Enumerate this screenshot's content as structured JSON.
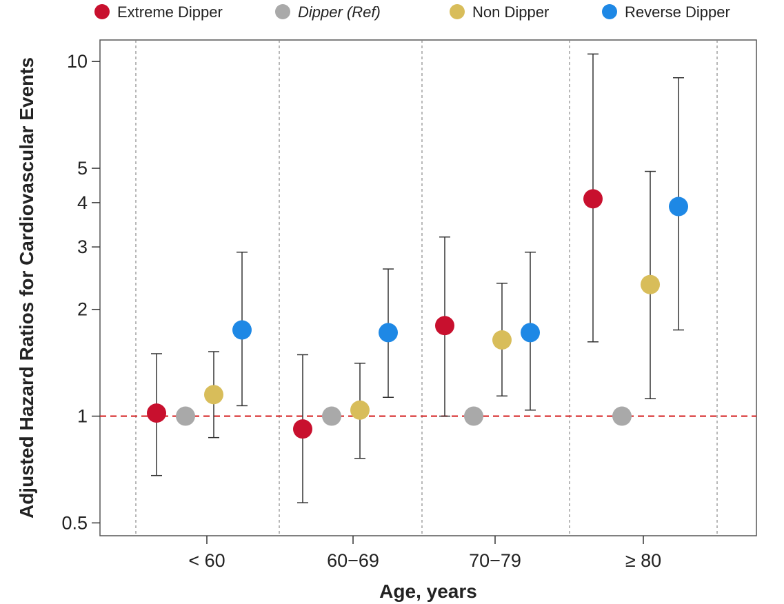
{
  "chart_data": {
    "type": "scatter",
    "subtype": "forest-plot-grouped",
    "title": "",
    "xlabel": "Age, years",
    "ylabel": "Adjusted Hazard Ratios for Cardiovascular Events",
    "y_scale": "log",
    "ylim": [
      0.46,
      11.5
    ],
    "y_ticks": [
      0.5,
      1,
      2,
      3,
      4,
      5,
      10
    ],
    "y_tick_labels": [
      "0.5",
      "1",
      "2",
      "3",
      "4",
      "5",
      "10"
    ],
    "categories": [
      "< 60",
      "60−69",
      "70−79",
      "≥ 80"
    ],
    "reference_line": {
      "value": 1,
      "color": "#d62728",
      "style": "dashed"
    },
    "grid": "vertical dashed separators between age groups",
    "legend_position": "top",
    "series": [
      {
        "name": "Extreme Dipper",
        "italic": false,
        "color": "#c8102e",
        "values": [
          1.02,
          0.92,
          1.8,
          4.1
        ],
        "ci_low": [
          0.68,
          0.57,
          1.0,
          1.62
        ],
        "ci_high": [
          1.5,
          1.49,
          3.2,
          10.5
        ]
      },
      {
        "name": "Dipper (Ref)",
        "italic": true,
        "color": "#a9a9a9",
        "values": [
          1.0,
          1.0,
          1.0,
          1.0
        ],
        "ci_low": [
          null,
          null,
          null,
          null
        ],
        "ci_high": [
          null,
          null,
          null,
          null
        ]
      },
      {
        "name": "Non Dipper",
        "italic": false,
        "color": "#d8bd5a",
        "values": [
          1.15,
          1.04,
          1.64,
          2.35
        ],
        "ci_low": [
          0.87,
          0.76,
          1.14,
          1.12
        ],
        "ci_high": [
          1.52,
          1.41,
          2.37,
          4.9
        ]
      },
      {
        "name": "Reverse Dipper",
        "italic": false,
        "color": "#1e88e5",
        "values": [
          1.75,
          1.72,
          1.72,
          3.9
        ],
        "ci_low": [
          1.07,
          1.13,
          1.04,
          1.75
        ],
        "ci_high": [
          2.9,
          2.6,
          2.9,
          9.0
        ]
      }
    ]
  }
}
